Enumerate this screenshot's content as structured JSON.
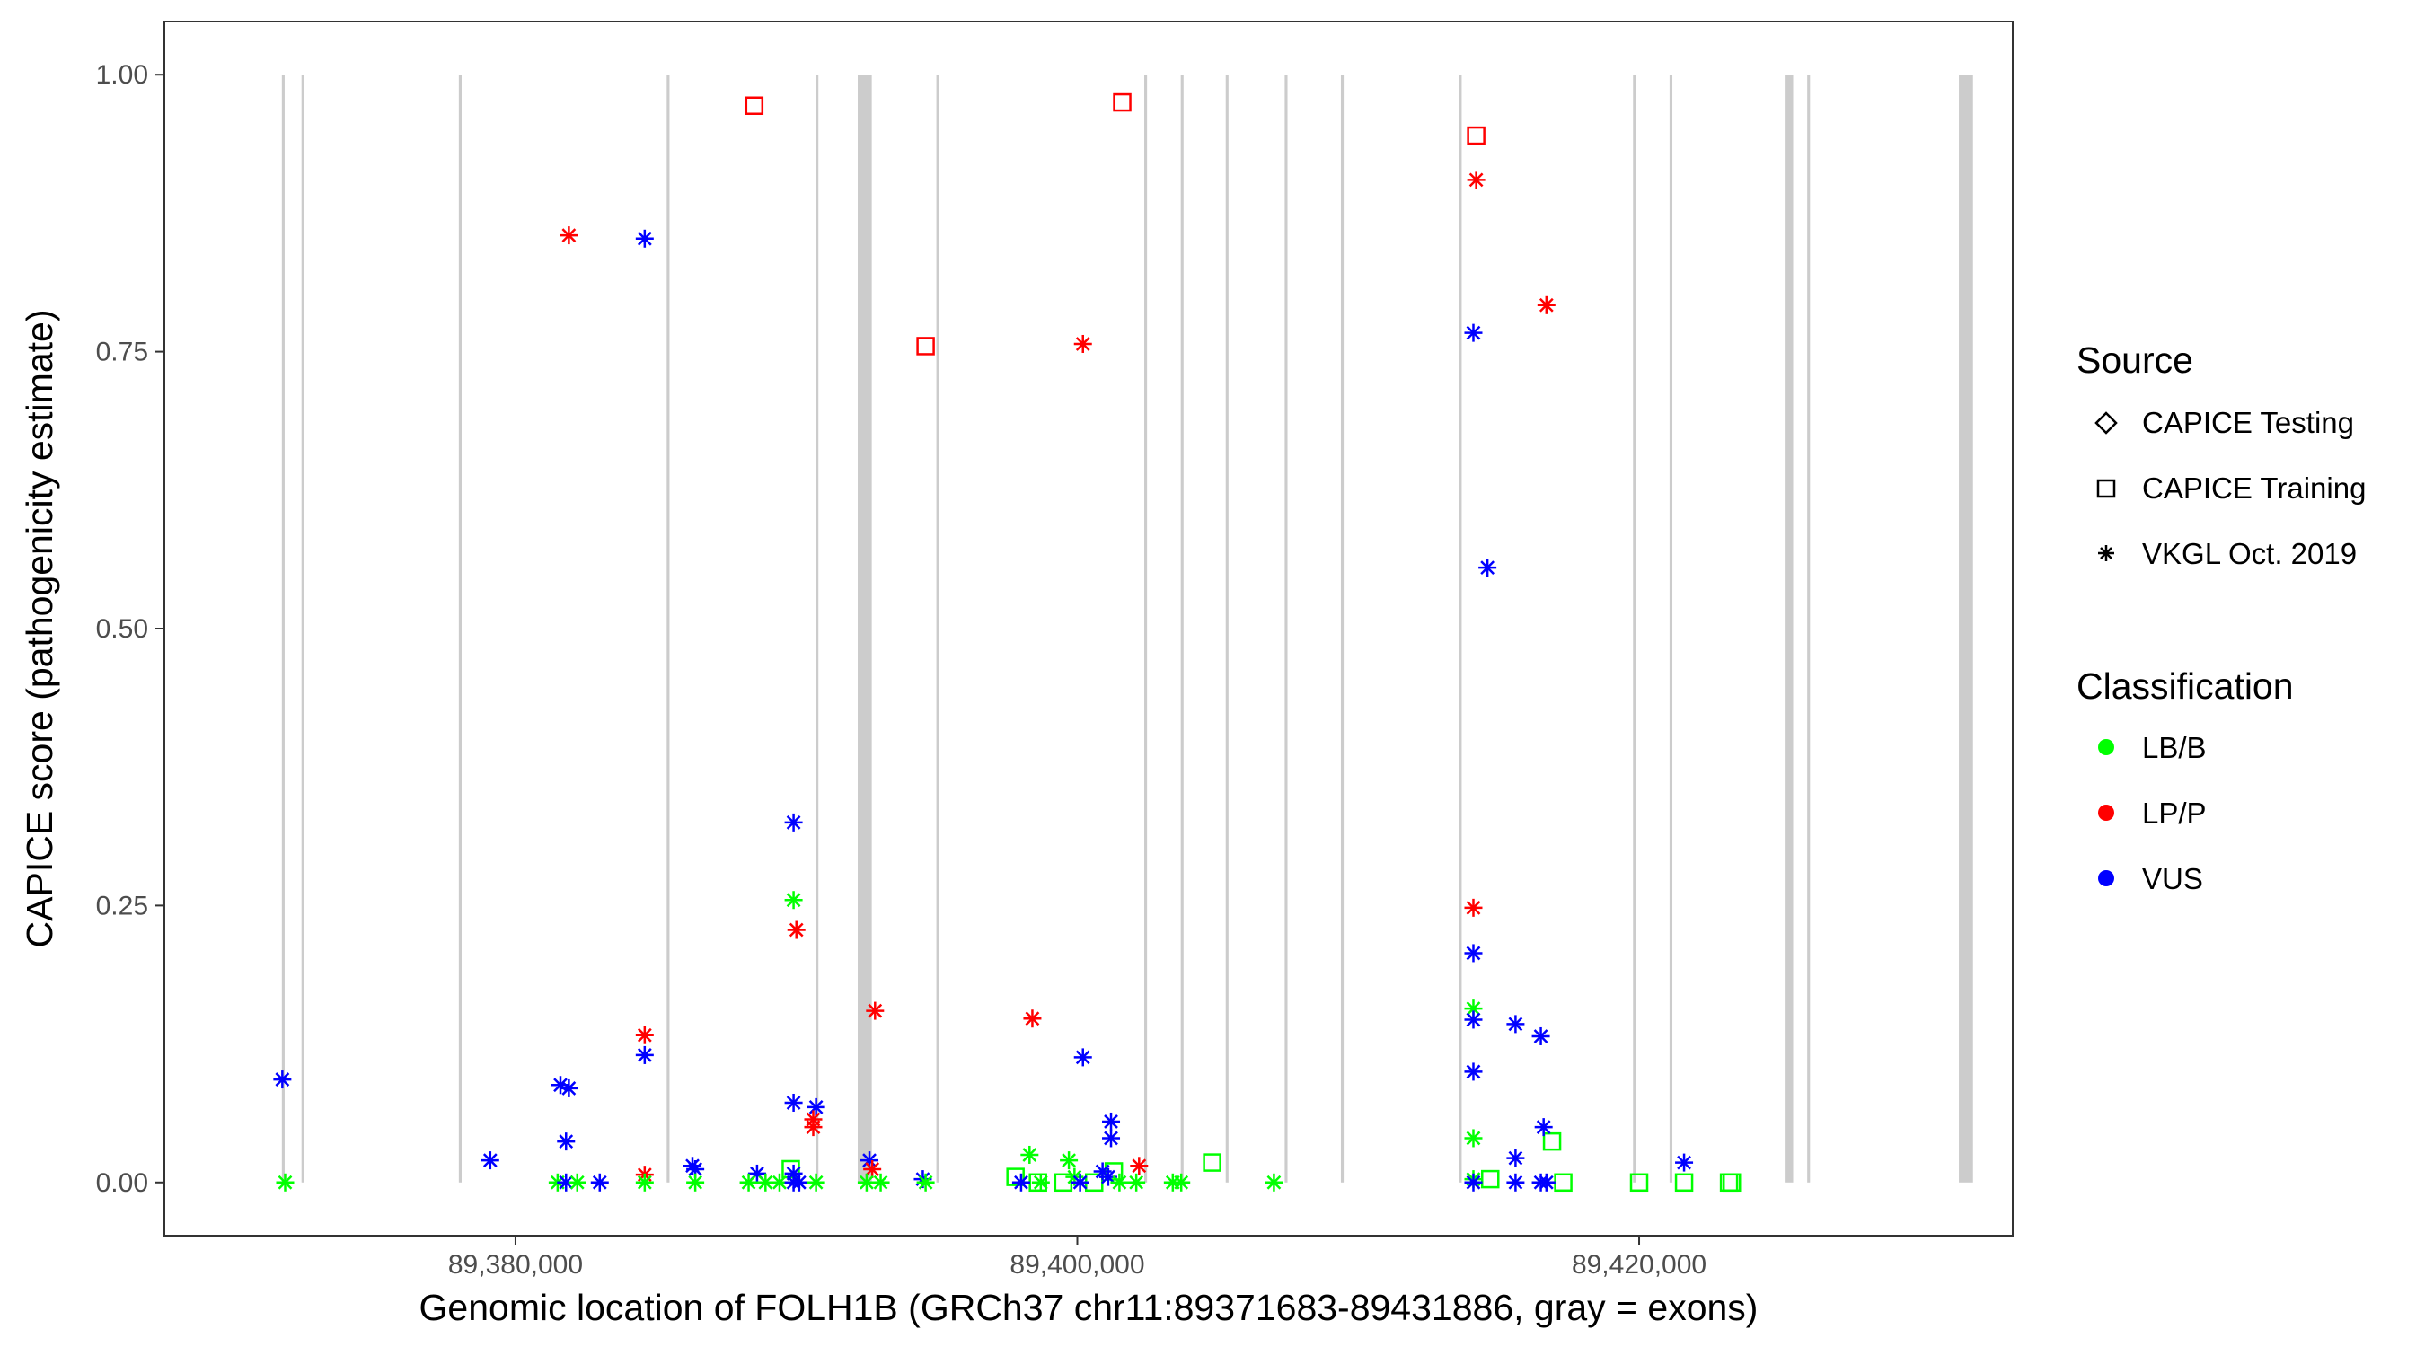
{
  "chart_data": {
    "type": "scatter",
    "title": "",
    "xlabel": "Genomic location of FOLH1B (GRCh37 chr11:89371683-89431886, gray = exons)",
    "ylabel": "CAPICE score (pathogenicity estimate)",
    "xlim": [
      89367500,
      89433300
    ],
    "ylim": [
      -0.048,
      1.048
    ],
    "xticks": [
      89380000,
      89400000,
      89420000
    ],
    "xtick_labels": [
      "89,380,000",
      "89,400,000",
      "89,420,000"
    ],
    "yticks": [
      0,
      0.25,
      0.5,
      0.75,
      1.0
    ],
    "ytick_labels": [
      "0.00",
      "0.25",
      "0.50",
      "0.75",
      "1.00"
    ],
    "grid": false,
    "colors": {
      "LB/B": "#00ff00",
      "LP/P": "#ff0000",
      "VUS": "#0000ff",
      "exon": "#cccccc"
    },
    "exons": [
      [
        89371683,
        89371783
      ],
      [
        89372383,
        89372483
      ],
      [
        89377983,
        89378083
      ],
      [
        89385383,
        89385483
      ],
      [
        89390683,
        89390783
      ],
      [
        89392183,
        89392683
      ],
      [
        89394983,
        89395083
      ],
      [
        89402383,
        89402483
      ],
      [
        89403683,
        89403783
      ],
      [
        89405283,
        89405383
      ],
      [
        89407383,
        89407483
      ],
      [
        89409383,
        89409483
      ],
      [
        89413583,
        89413683
      ],
      [
        89419783,
        89419883
      ],
      [
        89421083,
        89421183
      ],
      [
        89425183,
        89425483
      ],
      [
        89425983,
        89426083
      ],
      [
        89431383,
        89431886
      ]
    ],
    "legend": {
      "placement": "right",
      "shape_title": "Source",
      "shape_entries": [
        {
          "label": "CAPICE Testing",
          "shape": "diamond"
        },
        {
          "label": "CAPICE Training",
          "shape": "square"
        },
        {
          "label": "VKGL Oct. 2019",
          "shape": "asterisk"
        }
      ],
      "color_title": "Classification",
      "color_entries": [
        {
          "label": "LB/B",
          "color": "#00ff00"
        },
        {
          "label": "LP/P",
          "color": "#ff0000"
        },
        {
          "label": "VUS",
          "color": "#0000ff"
        }
      ]
    },
    "series": [
      {
        "source": "CAPICE Training",
        "shape": "square",
        "points": [
          {
            "x": 89388500,
            "y": 0.972,
            "class": "LP/P"
          },
          {
            "x": 89401600,
            "y": 0.975,
            "class": "LP/P"
          },
          {
            "x": 89394600,
            "y": 0.755,
            "class": "LP/P"
          },
          {
            "x": 89414200,
            "y": 0.945,
            "class": "LP/P"
          },
          {
            "x": 89389800,
            "y": 0.012,
            "class": "LB/B"
          },
          {
            "x": 89397800,
            "y": 0.005,
            "class": "LB/B"
          },
          {
            "x": 89398600,
            "y": 0.0,
            "class": "LB/B"
          },
          {
            "x": 89399500,
            "y": 0.0,
            "class": "LB/B"
          },
          {
            "x": 89400600,
            "y": 0.0,
            "class": "LB/B"
          },
          {
            "x": 89401300,
            "y": 0.01,
            "class": "LB/B"
          },
          {
            "x": 89404800,
            "y": 0.018,
            "class": "LB/B"
          },
          {
            "x": 89414700,
            "y": 0.003,
            "class": "LB/B"
          },
          {
            "x": 89416900,
            "y": 0.037,
            "class": "LB/B"
          },
          {
            "x": 89417300,
            "y": 0.0,
            "class": "LB/B"
          },
          {
            "x": 89420000,
            "y": 0.0,
            "class": "LB/B"
          },
          {
            "x": 89421600,
            "y": 0.0,
            "class": "LB/B"
          },
          {
            "x": 89423200,
            "y": 0.0,
            "class": "LB/B"
          },
          {
            "x": 89423300,
            "y": 0.0,
            "class": "LB/B"
          }
        ]
      },
      {
        "source": "VKGL Oct. 2019",
        "shape": "asterisk",
        "points": [
          {
            "x": 89371700,
            "y": 0.093,
            "class": "VUS"
          },
          {
            "x": 89371800,
            "y": 0.0,
            "class": "LB/B"
          },
          {
            "x": 89379100,
            "y": 0.02,
            "class": "VUS"
          },
          {
            "x": 89381900,
            "y": 0.855,
            "class": "LP/P"
          },
          {
            "x": 89381600,
            "y": 0.088,
            "class": "VUS"
          },
          {
            "x": 89381900,
            "y": 0.085,
            "class": "VUS"
          },
          {
            "x": 89381800,
            "y": 0.037,
            "class": "VUS"
          },
          {
            "x": 89381500,
            "y": 0.0,
            "class": "LB/B"
          },
          {
            "x": 89381800,
            "y": 0.0,
            "class": "VUS"
          },
          {
            "x": 89382200,
            "y": 0.0,
            "class": "LB/B"
          },
          {
            "x": 89383000,
            "y": 0.0,
            "class": "VUS"
          },
          {
            "x": 89384600,
            "y": 0.852,
            "class": "VUS"
          },
          {
            "x": 89384600,
            "y": 0.133,
            "class": "LP/P"
          },
          {
            "x": 89384600,
            "y": 0.115,
            "class": "VUS"
          },
          {
            "x": 89384600,
            "y": 0.007,
            "class": "LP/P"
          },
          {
            "x": 89384600,
            "y": 0.0,
            "class": "LB/B"
          },
          {
            "x": 89386300,
            "y": 0.015,
            "class": "VUS"
          },
          {
            "x": 89386400,
            "y": 0.012,
            "class": "VUS"
          },
          {
            "x": 89386400,
            "y": 0.0,
            "class": "LB/B"
          },
          {
            "x": 89388600,
            "y": 0.008,
            "class": "VUS"
          },
          {
            "x": 89388300,
            "y": 0.0,
            "class": "LB/B"
          },
          {
            "x": 89388900,
            "y": 0.0,
            "class": "LB/B"
          },
          {
            "x": 89389400,
            "y": 0.0,
            "class": "LB/B"
          },
          {
            "x": 89389900,
            "y": 0.325,
            "class": "VUS"
          },
          {
            "x": 89389900,
            "y": 0.255,
            "class": "LB/B"
          },
          {
            "x": 89390000,
            "y": 0.228,
            "class": "LP/P"
          },
          {
            "x": 89389900,
            "y": 0.072,
            "class": "VUS"
          },
          {
            "x": 89389900,
            "y": 0.008,
            "class": "VUS"
          },
          {
            "x": 89389900,
            "y": 0.0,
            "class": "VUS"
          },
          {
            "x": 89390100,
            "y": 0.0,
            "class": "VUS"
          },
          {
            "x": 89390700,
            "y": 0.068,
            "class": "VUS"
          },
          {
            "x": 89390600,
            "y": 0.057,
            "class": "LP/P"
          },
          {
            "x": 89390600,
            "y": 0.05,
            "class": "LP/P"
          },
          {
            "x": 89390700,
            "y": 0.0,
            "class": "LB/B"
          },
          {
            "x": 89392800,
            "y": 0.155,
            "class": "LP/P"
          },
          {
            "x": 89392600,
            "y": 0.02,
            "class": "VUS"
          },
          {
            "x": 89392700,
            "y": 0.012,
            "class": "LP/P"
          },
          {
            "x": 89392500,
            "y": 0.0,
            "class": "LB/B"
          },
          {
            "x": 89393000,
            "y": 0.0,
            "class": "LB/B"
          },
          {
            "x": 89394500,
            "y": 0.003,
            "class": "VUS"
          },
          {
            "x": 89394600,
            "y": 0.0,
            "class": "LB/B"
          },
          {
            "x": 89398400,
            "y": 0.148,
            "class": "LP/P"
          },
          {
            "x": 89398300,
            "y": 0.025,
            "class": "LB/B"
          },
          {
            "x": 89398000,
            "y": 0.0,
            "class": "VUS"
          },
          {
            "x": 89398700,
            "y": 0.0,
            "class": "LB/B"
          },
          {
            "x": 89399700,
            "y": 0.02,
            "class": "LB/B"
          },
          {
            "x": 89399900,
            "y": 0.005,
            "class": "LB/B"
          },
          {
            "x": 89400200,
            "y": 0.757,
            "class": "LP/P"
          },
          {
            "x": 89400200,
            "y": 0.113,
            "class": "VUS"
          },
          {
            "x": 89400100,
            "y": 0.0,
            "class": "VUS"
          },
          {
            "x": 89400900,
            "y": 0.01,
            "class": "VUS"
          },
          {
            "x": 89401200,
            "y": 0.055,
            "class": "VUS"
          },
          {
            "x": 89401200,
            "y": 0.04,
            "class": "VUS"
          },
          {
            "x": 89401100,
            "y": 0.005,
            "class": "VUS"
          },
          {
            "x": 89401500,
            "y": 0.0,
            "class": "LB/B"
          },
          {
            "x": 89402100,
            "y": 0.0,
            "class": "LB/B"
          },
          {
            "x": 89402200,
            "y": 0.015,
            "class": "LP/P"
          },
          {
            "x": 89403400,
            "y": 0.0,
            "class": "LB/B"
          },
          {
            "x": 89403700,
            "y": 0.0,
            "class": "LB/B"
          },
          {
            "x": 89407000,
            "y": 0.0,
            "class": "LB/B"
          },
          {
            "x": 89414200,
            "y": 0.905,
            "class": "LP/P"
          },
          {
            "x": 89414100,
            "y": 0.767,
            "class": "VUS"
          },
          {
            "x": 89414100,
            "y": 0.248,
            "class": "LP/P"
          },
          {
            "x": 89414100,
            "y": 0.207,
            "class": "VUS"
          },
          {
            "x": 89414100,
            "y": 0.157,
            "class": "LB/B"
          },
          {
            "x": 89414100,
            "y": 0.147,
            "class": "VUS"
          },
          {
            "x": 89414100,
            "y": 0.1,
            "class": "VUS"
          },
          {
            "x": 89414100,
            "y": 0.04,
            "class": "LB/B"
          },
          {
            "x": 89414100,
            "y": 0.003,
            "class": "LB/B"
          },
          {
            "x": 89414100,
            "y": 0.0,
            "class": "VUS"
          },
          {
            "x": 89414600,
            "y": 0.555,
            "class": "VUS"
          },
          {
            "x": 89416700,
            "y": 0.792,
            "class": "LP/P"
          },
          {
            "x": 89415600,
            "y": 0.143,
            "class": "VUS"
          },
          {
            "x": 89416500,
            "y": 0.132,
            "class": "VUS"
          },
          {
            "x": 89416600,
            "y": 0.05,
            "class": "VUS"
          },
          {
            "x": 89415600,
            "y": 0.022,
            "class": "VUS"
          },
          {
            "x": 89415600,
            "y": 0.0,
            "class": "VUS"
          },
          {
            "x": 89416500,
            "y": 0.0,
            "class": "VUS"
          },
          {
            "x": 89416700,
            "y": 0.0,
            "class": "VUS"
          },
          {
            "x": 89421600,
            "y": 0.018,
            "class": "VUS"
          }
        ]
      }
    ]
  }
}
